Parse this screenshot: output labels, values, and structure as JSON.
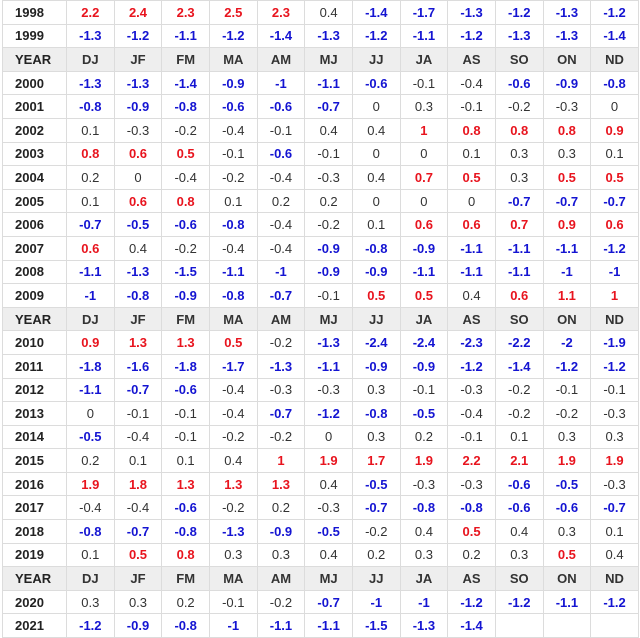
{
  "header_labels": [
    "YEAR",
    "DJ",
    "JF",
    "FM",
    "MA",
    "AM",
    "MJ",
    "JJ",
    "JA",
    "AS",
    "SO",
    "ON",
    "ND"
  ],
  "colors": {
    "warm": "#e8141e",
    "cold": "#1414d2",
    "neutral": "#333333",
    "header_bg": "#eeeeee"
  },
  "rows": [
    {
      "year": "1998",
      "values": [
        "2.2",
        "2.4",
        "2.3",
        "2.5",
        "2.3",
        "0.4",
        "-1.4",
        "-1.7",
        "-1.3",
        "-1.2",
        "-1.3",
        "-1.2"
      ]
    },
    {
      "year": "1999",
      "values": [
        "-1.3",
        "-1.2",
        "-1.1",
        "-1.2",
        "-1.4",
        "-1.3",
        "-1.2",
        "-1.1",
        "-1.2",
        "-1.3",
        "-1.3",
        "-1.4"
      ]
    },
    {
      "header": true
    },
    {
      "year": "2000",
      "values": [
        "-1.3",
        "-1.3",
        "-1.4",
        "-0.9",
        "-1",
        "-1.1",
        "-0.6",
        "-0.1",
        "-0.4",
        "-0.6",
        "-0.9",
        "-0.8"
      ]
    },
    {
      "year": "2001",
      "values": [
        "-0.8",
        "-0.9",
        "-0.8",
        "-0.6",
        "-0.6",
        "-0.7",
        "0",
        "0.3",
        "-0.1",
        "-0.2",
        "-0.3",
        "0"
      ]
    },
    {
      "year": "2002",
      "values": [
        "0.1",
        "-0.3",
        "-0.2",
        "-0.4",
        "-0.1",
        "0.4",
        "0.4",
        "1",
        "0.8",
        "0.8",
        "0.8",
        "0.9"
      ]
    },
    {
      "year": "2003",
      "values": [
        "0.8",
        "0.6",
        "0.5",
        "-0.1",
        "-0.6",
        "-0.1",
        "0",
        "0",
        "0.1",
        "0.3",
        "0.3",
        "0.1"
      ]
    },
    {
      "year": "2004",
      "values": [
        "0.2",
        "0",
        "-0.4",
        "-0.2",
        "-0.4",
        "-0.3",
        "0.4",
        "0.7",
        "0.5",
        "0.3",
        "0.5",
        "0.5"
      ]
    },
    {
      "year": "2005",
      "values": [
        "0.1",
        "0.6",
        "0.8",
        "0.1",
        "0.2",
        "0.2",
        "0",
        "0",
        "0",
        "-0.7",
        "-0.7",
        "-0.7"
      ]
    },
    {
      "year": "2006",
      "values": [
        "-0.7",
        "-0.5",
        "-0.6",
        "-0.8",
        "-0.4",
        "-0.2",
        "0.1",
        "0.6",
        "0.6",
        "0.7",
        "0.9",
        "0.6"
      ]
    },
    {
      "year": "2007",
      "values": [
        "0.6",
        "0.4",
        "-0.2",
        "-0.4",
        "-0.4",
        "-0.9",
        "-0.8",
        "-0.9",
        "-1.1",
        "-1.1",
        "-1.1",
        "-1.2"
      ]
    },
    {
      "year": "2008",
      "values": [
        "-1.1",
        "-1.3",
        "-1.5",
        "-1.1",
        "-1",
        "-0.9",
        "-0.9",
        "-1.1",
        "-1.1",
        "-1.1",
        "-1",
        "-1"
      ]
    },
    {
      "year": "2009",
      "values": [
        "-1",
        "-0.8",
        "-0.9",
        "-0.8",
        "-0.7",
        "-0.1",
        "0.5",
        "0.5",
        "0.4",
        "0.6",
        "1.1",
        "1"
      ]
    },
    {
      "header": true
    },
    {
      "year": "2010",
      "values": [
        "0.9",
        "1.3",
        "1.3",
        "0.5",
        "-0.2",
        "-1.3",
        "-2.4",
        "-2.4",
        "-2.3",
        "-2.2",
        "-2",
        "-1.9"
      ]
    },
    {
      "year": "2011",
      "values": [
        "-1.8",
        "-1.6",
        "-1.8",
        "-1.7",
        "-1.3",
        "-1.1",
        "-0.9",
        "-0.9",
        "-1.2",
        "-1.4",
        "-1.2",
        "-1.2"
      ]
    },
    {
      "year": "2012",
      "values": [
        "-1.1",
        "-0.7",
        "-0.6",
        "-0.4",
        "-0.3",
        "-0.3",
        "0.3",
        "-0.1",
        "-0.3",
        "-0.2",
        "-0.1",
        "-0.1"
      ]
    },
    {
      "year": "2013",
      "values": [
        "0",
        "-0.1",
        "-0.1",
        "-0.4",
        "-0.7",
        "-1.2",
        "-0.8",
        "-0.5",
        "-0.4",
        "-0.2",
        "-0.2",
        "-0.3"
      ]
    },
    {
      "year": "2014",
      "values": [
        "-0.5",
        "-0.4",
        "-0.1",
        "-0.2",
        "-0.2",
        "0",
        "0.3",
        "0.2",
        "-0.1",
        "0.1",
        "0.3",
        "0.3"
      ]
    },
    {
      "year": "2015",
      "values": [
        "0.2",
        "0.1",
        "0.1",
        "0.4",
        "1",
        "1.9",
        "1.7",
        "1.9",
        "2.2",
        "2.1",
        "1.9",
        "1.9"
      ]
    },
    {
      "year": "2016",
      "values": [
        "1.9",
        "1.8",
        "1.3",
        "1.3",
        "1.3",
        "0.4",
        "-0.5",
        "-0.3",
        "-0.3",
        "-0.6",
        "-0.5",
        "-0.3"
      ]
    },
    {
      "year": "2017",
      "values": [
        "-0.4",
        "-0.4",
        "-0.6",
        "-0.2",
        "0.2",
        "-0.3",
        "-0.7",
        "-0.8",
        "-0.8",
        "-0.6",
        "-0.6",
        "-0.7"
      ]
    },
    {
      "year": "2018",
      "values": [
        "-0.8",
        "-0.7",
        "-0.8",
        "-1.3",
        "-0.9",
        "-0.5",
        "-0.2",
        "0.4",
        "0.5",
        "0.4",
        "0.3",
        "0.1"
      ]
    },
    {
      "year": "2019",
      "values": [
        "0.1",
        "0.5",
        "0.8",
        "0.3",
        "0.3",
        "0.4",
        "0.2",
        "0.3",
        "0.2",
        "0.3",
        "0.5",
        "0.4"
      ]
    },
    {
      "header": true
    },
    {
      "year": "2020",
      "values": [
        "0.3",
        "0.3",
        "0.2",
        "-0.1",
        "-0.2",
        "-0.7",
        "-1",
        "-1",
        "-1.2",
        "-1.2",
        "-1.1",
        "-1.2"
      ]
    },
    {
      "year": "2021",
      "values": [
        "-1.2",
        "-0.9",
        "-0.8",
        "-1",
        "-1.1",
        "-1.1",
        "-1.5",
        "-1.3",
        "-1.4",
        "",
        "",
        ""
      ]
    }
  ]
}
